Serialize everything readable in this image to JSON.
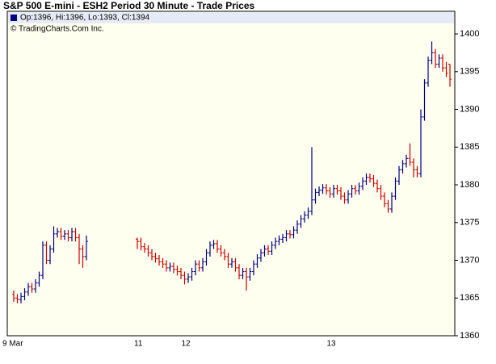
{
  "chart_data": {
    "type": "ohlc",
    "title": "S&P 500 E-mini - ESH2 Period 30 Minute - Trade Prices",
    "legend_text": "Op:1396, Hi:1396, Lo:1393, Cl:1394",
    "copyright": "© TradingCharts.Com Inc.",
    "up_color": "#000080",
    "down_color": "#cc0000",
    "categories": [
      "9 Mar",
      null,
      null,
      null,
      null,
      null,
      null,
      null,
      null,
      null,
      null,
      null,
      null,
      null,
      null,
      null,
      null,
      null,
      null,
      null,
      null,
      null,
      null,
      null,
      null,
      null,
      null,
      null,
      null,
      null,
      null,
      null,
      null,
      null,
      "11",
      null,
      null,
      null,
      null,
      null,
      null,
      null,
      null,
      null,
      null,
      null,
      null,
      "12",
      null,
      null,
      null,
      null,
      null,
      null,
      null,
      null,
      null,
      null,
      null,
      null,
      null,
      null,
      null,
      null,
      null,
      null,
      null,
      null,
      null,
      null,
      null,
      null,
      null,
      null,
      null,
      null,
      null,
      null,
      null,
      null,
      null,
      null,
      null,
      null,
      null,
      null,
      null,
      "13",
      null,
      null,
      null,
      null,
      null,
      null,
      null,
      null,
      null,
      null,
      null,
      null,
      null,
      null,
      null,
      null,
      null,
      null,
      null,
      null,
      null,
      null,
      null,
      null,
      null,
      null,
      null,
      null,
      null,
      null,
      null,
      null,
      null
    ],
    "open": [
      1365.5,
      1365,
      1364.8,
      1365.2,
      1365.8,
      1366.5,
      1366.2,
      1367,
      1368,
      1372,
      1370,
      1371.5,
      1373.5,
      1373.8,
      1373.2,
      1373.5,
      1373,
      1373.8,
      1373,
      1371.5,
      1370.5,
      null,
      null,
      null,
      null,
      null,
      null,
      null,
      null,
      null,
      null,
      null,
      null,
      null,
      1372.8,
      1372.5,
      1371.8,
      1371.5,
      1371,
      1370.5,
      1370.2,
      1369.8,
      1369.5,
      1369,
      1369.2,
      1368.8,
      1368.5,
      1368,
      1367.5,
      1367.8,
      1368.5,
      1369.5,
      1369,
      1369.8,
      1371,
      1372,
      1372.2,
      1371.5,
      1371,
      1370.5,
      1369.5,
      1369.8,
      1369,
      1368,
      1368.5,
      1367.8,
      1368.5,
      1369.5,
      1370.3,
      1371,
      1371.5,
      1371.2,
      1372,
      1372.5,
      1372.8,
      1373,
      1373.5,
      1373.4,
      1374,
      1374.8,
      1375.5,
      1376,
      1376.5,
      1378,
      1379,
      1379.3,
      1379.6,
      1379.2,
      1378.8,
      1379.5,
      1379.2,
      1378.5,
      1378,
      1378.8,
      1379.5,
      1379.2,
      1379.8,
      1380.5,
      1381,
      1380.8,
      1380.2,
      1379.5,
      1378.5,
      1377.5,
      1376.8,
      1378.5,
      1380.5,
      1382,
      1382.8,
      1383.5,
      1383,
      1382,
      1381.5,
      1389,
      1393.5,
      1396.5,
      1397.5,
      1396,
      1396.8,
      1395.5,
      1396
    ],
    "high": [
      1366,
      1365.5,
      1365.7,
      1366.3,
      1367,
      1367,
      1367.5,
      1368.5,
      1372.5,
      1372.5,
      1372,
      1374.5,
      1374.3,
      1374.3,
      1374,
      1374,
      1374.3,
      1374.3,
      1373.5,
      1372,
      1373.3,
      null,
      null,
      null,
      null,
      null,
      null,
      null,
      null,
      null,
      null,
      null,
      null,
      null,
      1373,
      1373,
      1372.3,
      1372,
      1371.5,
      1371,
      1370.7,
      1370.3,
      1370,
      1369.7,
      1369.7,
      1369.3,
      1369,
      1368.5,
      1368.3,
      1369,
      1370,
      1370,
      1370.3,
      1371.5,
      1372.5,
      1372.7,
      1372.7,
      1372,
      1371.5,
      1371,
      1370.3,
      1370.3,
      1369.5,
      1369,
      1369,
      1369,
      1370,
      1370.8,
      1371.5,
      1372,
      1372,
      1372.5,
      1373,
      1373.3,
      1373.5,
      1374,
      1374,
      1374.5,
      1375.3,
      1376,
      1376.5,
      1377,
      1385,
      1379.5,
      1379.8,
      1380.1,
      1380.1,
      1379.7,
      1380,
      1380,
      1379.7,
      1379,
      1379.3,
      1380,
      1380,
      1380.3,
      1381,
      1381.5,
      1381.5,
      1381.3,
      1380.7,
      1380,
      1379,
      1378,
      1379,
      1381,
      1382.5,
      1383.3,
      1384,
      1385.5,
      1383.5,
      1382.5,
      1390,
      1394,
      1397,
      1399,
      1398,
      1397.3,
      1397.3,
      1396.3,
      1396
    ],
    "low": [
      1364.5,
      1364.3,
      1364.3,
      1364.7,
      1365.3,
      1365.7,
      1365.7,
      1366.5,
      1367.5,
      1369.5,
      1369.5,
      1371,
      1373,
      1372.7,
      1372.7,
      1372.5,
      1372.5,
      1372.5,
      1369.5,
      1369,
      1370,
      null,
      null,
      null,
      null,
      null,
      null,
      null,
      null,
      null,
      null,
      null,
      null,
      null,
      1371.5,
      1371.3,
      1371,
      1370.5,
      1370,
      1369.7,
      1369.3,
      1369,
      1368.5,
      1368.5,
      1368.3,
      1368,
      1367.5,
      1366.8,
      1367,
      1367.3,
      1368,
      1368.5,
      1368.5,
      1369.3,
      1370.5,
      1371.5,
      1371,
      1370.5,
      1370,
      1369,
      1369,
      1368.5,
      1367.5,
      1367.5,
      1366,
      1367.3,
      1368,
      1369,
      1369.8,
      1370.5,
      1370.7,
      1370.7,
      1371.5,
      1372,
      1372.3,
      1372.5,
      1372.9,
      1372.9,
      1373.5,
      1374.3,
      1375,
      1375.5,
      1376,
      1377.5,
      1378.5,
      1378.8,
      1378.7,
      1378.3,
      1378.3,
      1378.7,
      1378,
      1377.5,
      1377.5,
      1378.3,
      1378.7,
      1378.7,
      1379.3,
      1380,
      1380.3,
      1379.7,
      1379,
      1378,
      1377,
      1376.3,
      1376.3,
      1378,
      1380,
      1381.5,
      1382.3,
      1382.5,
      1381,
      1381,
      1381,
      1388.5,
      1393,
      1396,
      1395.5,
      1395.5,
      1395,
      1394.3,
      1393
    ],
    "close": [
      1365,
      1364.8,
      1365.2,
      1365.8,
      1366.5,
      1366.2,
      1367,
      1368,
      1372,
      1370,
      1371.5,
      1373.5,
      1373.8,
      1373.2,
      1373.5,
      1373,
      1373.8,
      1373,
      1371.5,
      1370.5,
      1372.5,
      null,
      null,
      null,
      null,
      null,
      null,
      null,
      null,
      null,
      null,
      null,
      null,
      null,
      1372.5,
      1371.8,
      1371.5,
      1371,
      1370.5,
      1370.2,
      1369.8,
      1369.5,
      1369,
      1369.2,
      1368.8,
      1368.5,
      1368,
      1367.5,
      1367.8,
      1368.5,
      1369.5,
      1369,
      1369.8,
      1371,
      1372,
      1372.2,
      1371.5,
      1371,
      1370.5,
      1369.5,
      1369.8,
      1369,
      1368,
      1368.5,
      1367.8,
      1368.5,
      1369.5,
      1370.3,
      1371,
      1371.5,
      1371.2,
      1372,
      1372.5,
      1372.8,
      1373,
      1373.5,
      1373.4,
      1374,
      1374.8,
      1375.5,
      1376,
      1376.5,
      1378,
      1379,
      1379.3,
      1379.6,
      1379.2,
      1378.8,
      1379.5,
      1379.2,
      1378.5,
      1378,
      1378.8,
      1379.5,
      1379.2,
      1379.8,
      1380.5,
      1381,
      1380.8,
      1380.2,
      1379.5,
      1378.5,
      1377.5,
      1376.8,
      1378.5,
      1380.5,
      1382,
      1382.8,
      1383.5,
      1383,
      1382,
      1381.5,
      1389,
      1393.5,
      1396.5,
      1397.5,
      1396,
      1396.8,
      1395.5,
      1394.8,
      1394
    ],
    "ylim": [
      1360,
      1403
    ],
    "yticks": [
      1360,
      1365,
      1370,
      1375,
      1380,
      1385,
      1390,
      1395,
      1400
    ]
  }
}
